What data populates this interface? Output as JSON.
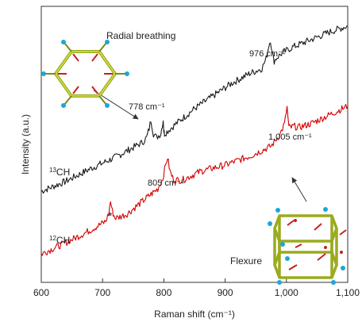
{
  "chart_data": {
    "type": "line",
    "xlabel": "Raman shift (cm⁻¹)",
    "ylabel": "Intensity (a.u.)",
    "xlim": [
      600,
      1100
    ],
    "ylim": [
      0,
      10
    ],
    "x_ticks": [
      600,
      700,
      800,
      900,
      1000,
      1100
    ],
    "x_tick_labels": [
      "600",
      "700",
      "800",
      "900",
      "1,000",
      "1,100"
    ],
    "grid": false,
    "series": [
      {
        "name": "13CH",
        "label_base": "CH",
        "label_sup": "13",
        "color": "#1a1a1a",
        "x": [
          600,
          640,
          680,
          720,
          750,
          765,
          772,
          776,
          779,
          783,
          788,
          795,
          799,
          800,
          801,
          805,
          820,
          850,
          880,
          910,
          940,
          960,
          967,
          971,
          974,
          977,
          980,
          985,
          995,
          1010,
          1040,
          1070,
          1100
        ],
        "y": [
          3.0,
          3.4,
          3.9,
          4.35,
          4.75,
          4.95,
          5.15,
          5.5,
          5.85,
          5.3,
          5.15,
          5.3,
          5.85,
          5.4,
          5.3,
          5.38,
          5.7,
          6.3,
          6.8,
          7.3,
          7.7,
          7.9,
          8.3,
          8.8,
          9.05,
          8.5,
          8.2,
          8.35,
          8.55,
          8.75,
          9.05,
          9.35,
          9.6
        ]
      },
      {
        "name": "12CH",
        "label_base": "CH",
        "label_sup": "12",
        "color": "#d40000",
        "x": [
          600,
          640,
          680,
          705,
          710,
          713,
          716,
          720,
          725,
          740,
          770,
          790,
          798,
          803,
          806,
          810,
          816,
          830,
          860,
          900,
          940,
          975,
          990,
          997,
          1001,
          1004,
          1008,
          1012,
          1020,
          1040,
          1070,
          1100
        ],
        "y": [
          0.5,
          0.95,
          1.45,
          1.8,
          2.1,
          2.6,
          2.2,
          1.95,
          1.95,
          2.1,
          2.7,
          3.1,
          3.5,
          4.05,
          4.35,
          3.8,
          3.45,
          3.45,
          3.8,
          4.05,
          4.4,
          4.8,
          5.3,
          5.7,
          6.35,
          5.55,
          5.55,
          5.6,
          5.55,
          5.7,
          6.05,
          6.4
        ]
      }
    ],
    "annotations": [
      {
        "id": "peak-976",
        "text": "976 cm⁻¹"
      },
      {
        "id": "peak-778",
        "text": "778 cm⁻¹"
      },
      {
        "id": "peak-805",
        "text": "805 cm⁻¹"
      },
      {
        "id": "peak-1005",
        "text": "1,005 cm⁻¹"
      },
      {
        "id": "asterisk",
        "text": "*"
      }
    ],
    "insets": [
      {
        "id": "radial-breathing",
        "label": "Radial breathing"
      },
      {
        "id": "flexure",
        "label": "Flexure"
      }
    ]
  }
}
